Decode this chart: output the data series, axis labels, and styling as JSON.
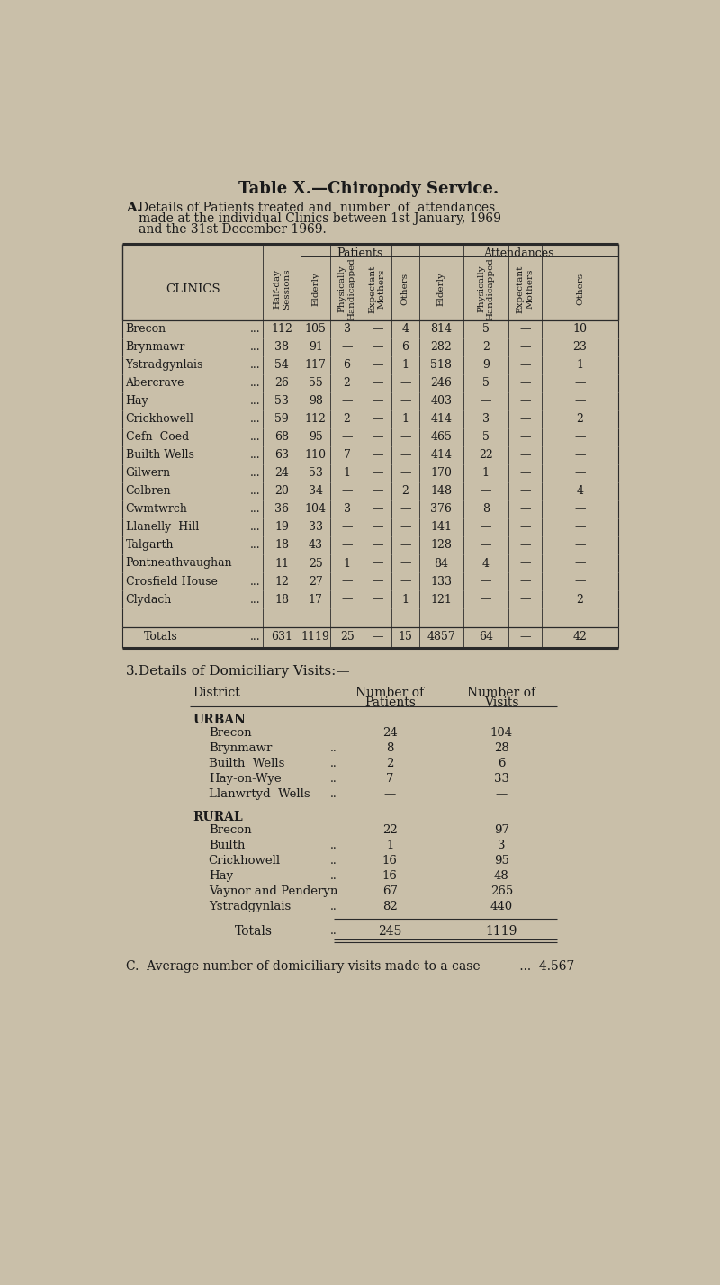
{
  "title": "Table X.—Chiropody Service.",
  "bg_color": "#c9bfa9",
  "text_color": "#1a1a1a",
  "clinic_rows": [
    [
      "Brecon",
      "...",
      "112",
      "105",
      "3",
      "—",
      "4",
      "814",
      "5",
      "—",
      "10"
    ],
    [
      "Brynmawr",
      "...",
      "38",
      "91",
      "—",
      "—",
      "6",
      "282",
      "2",
      "—",
      "23"
    ],
    [
      "Ystradgynlais",
      "...",
      "54",
      "117",
      "6",
      "—",
      "1",
      "518",
      "9",
      "—",
      "1"
    ],
    [
      "Abercrave",
      "...",
      "26",
      "55",
      "2",
      "—",
      "—",
      "246",
      "5",
      "—",
      "—"
    ],
    [
      "Hay",
      "...",
      "53",
      "98",
      "—",
      "—",
      "—",
      "403",
      "—",
      "—",
      "—"
    ],
    [
      "Crickhowell",
      "...",
      "59",
      "112",
      "2",
      "—",
      "1",
      "414",
      "3",
      "—",
      "2"
    ],
    [
      "Cefn  Coed",
      "...",
      "68",
      "95",
      "—",
      "—",
      "—",
      "465",
      "5",
      "—",
      "—"
    ],
    [
      "Builth Wells",
      "...",
      "63",
      "110",
      "7",
      "—",
      "—",
      "414",
      "22",
      "—",
      "—"
    ],
    [
      "Gilwern",
      "...",
      "24",
      "53",
      "1",
      "—",
      "—",
      "170",
      "1",
      "—",
      "—"
    ],
    [
      "Colbren",
      "...",
      "20",
      "34",
      "—",
      "—",
      "2",
      "148",
      "—",
      "—",
      "4"
    ],
    [
      "Cwmtwrch",
      "...",
      "36",
      "104",
      "3",
      "—",
      "—",
      "376",
      "8",
      "—",
      "—"
    ],
    [
      "Llanelly  Hill",
      "...",
      "19",
      "33",
      "—",
      "—",
      "—",
      "141",
      "—",
      "—",
      "—"
    ],
    [
      "Talgarth",
      "...",
      "18",
      "43",
      "—",
      "—",
      "—",
      "128",
      "—",
      "—",
      "—"
    ],
    [
      "Pontneathvaughan",
      "",
      "11",
      "25",
      "1",
      "—",
      "—",
      "84",
      "4",
      "—",
      "—"
    ],
    [
      "Crosfield House",
      "...",
      "12",
      "27",
      "—",
      "—",
      "—",
      "133",
      "—",
      "—",
      "—"
    ],
    [
      "Clydach",
      "...",
      "18",
      "17",
      "—",
      "—",
      "1",
      "121",
      "—",
      "—",
      "2"
    ]
  ],
  "totals_row": [
    "Totals",
    "...",
    "631",
    "1119",
    "25",
    "—",
    "15",
    "4857",
    "64",
    "—",
    "42"
  ],
  "dom_urban_rows": [
    [
      "Brecon",
      "",
      "24",
      "104"
    ],
    [
      "Brynmawr",
      "..",
      "8",
      "28"
    ],
    [
      "Builth  Wells",
      "..",
      "2",
      "6"
    ],
    [
      "Hay-on-Wye",
      "..",
      "7",
      "33"
    ],
    [
      "Llanwrtyd  Wells",
      "..",
      "—",
      "—"
    ]
  ],
  "dom_rural_rows": [
    [
      "Brecon",
      "",
      "22",
      "97"
    ],
    [
      "Builth",
      "..",
      "1",
      "3"
    ],
    [
      "Crickhowell",
      "..",
      "16",
      "95"
    ],
    [
      "Hay",
      "..",
      "16",
      "48"
    ],
    [
      "Vaynor and Penderyn",
      "..",
      "67",
      "265"
    ],
    [
      "Ystradgynlais",
      "..",
      "82",
      "440"
    ]
  ],
  "dom_totals_row": [
    "Totals",
    "..",
    "245",
    "1119"
  ]
}
